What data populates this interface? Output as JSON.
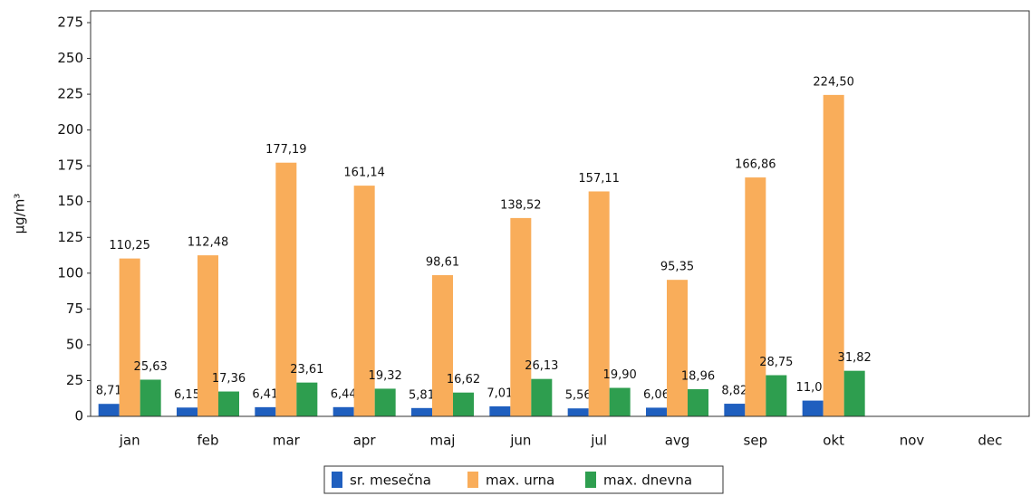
{
  "chart_data": {
    "type": "bar",
    "y_label": "µg/m³",
    "categories": [
      "jan",
      "feb",
      "mar",
      "apr",
      "maj",
      "jun",
      "jul",
      "avg",
      "sep",
      "okt",
      "nov",
      "dec"
    ],
    "series": [
      {
        "name": "sr. mesečna",
        "color": "#1f5fbf",
        "values": [
          8.71,
          6.15,
          6.41,
          6.44,
          5.81,
          7.01,
          5.56,
          6.06,
          8.82,
          11.01,
          null,
          null
        ],
        "value_labels": [
          "8,71",
          "6,15",
          "6,41",
          "6,44",
          "5,81",
          "7,01",
          "5,56",
          "6,06",
          "8,82",
          "11,01",
          null,
          null
        ]
      },
      {
        "name": "max. urna",
        "color": "#f9ad5a",
        "values": [
          110.25,
          112.48,
          177.19,
          161.14,
          98.61,
          138.52,
          157.11,
          95.35,
          166.86,
          224.5,
          null,
          null
        ],
        "value_labels": [
          "110,25",
          "112,48",
          "177,19",
          "161,14",
          "98,61",
          "138,52",
          "157,11",
          "95,35",
          "166,86",
          "224,50",
          null,
          null
        ]
      },
      {
        "name": "max. dnevna",
        "color": "#2e9e4f",
        "values": [
          25.63,
          17.36,
          23.61,
          19.32,
          16.62,
          26.13,
          19.9,
          18.96,
          28.75,
          31.82,
          null,
          null
        ],
        "value_labels": [
          "25,63",
          "17,36",
          "23,61",
          "19,32",
          "16,62",
          "26,13",
          "19,90",
          "18,96",
          "28,75",
          "31,82",
          null,
          null
        ]
      }
    ],
    "ylim": [
      0,
      275
    ],
    "yticks": [
      0,
      25,
      50,
      75,
      100,
      125,
      150,
      175,
      200,
      225,
      250,
      275
    ],
    "grid": false,
    "legend": "bottom"
  }
}
